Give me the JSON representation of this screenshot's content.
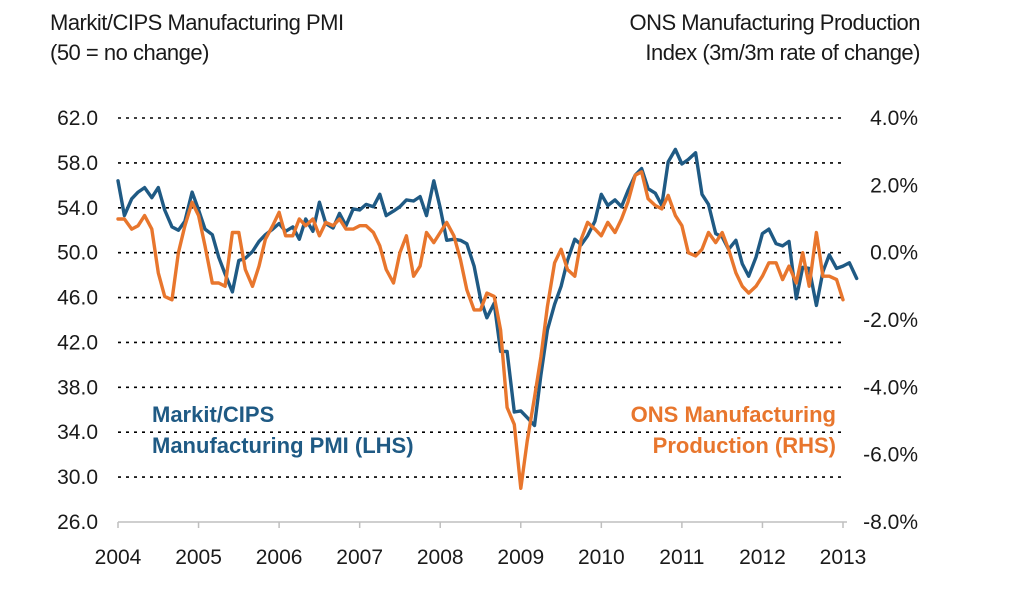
{
  "left_title": {
    "line1": "Markit/CIPS Manufacturing PMI",
    "line2": "(50 = no change)"
  },
  "right_title": {
    "line1": "ONS Manufacturing Production",
    "line2": "Index (3m/3m rate of change)"
  },
  "colors": {
    "pmi": "#1f5a84",
    "ons": "#e8762d",
    "grid": "#000000",
    "axis": "#bfbfbf"
  },
  "chart_data": {
    "type": "line",
    "x_ticks": [
      "2004",
      "2005",
      "2006",
      "2007",
      "2008",
      "2009",
      "2010",
      "2011",
      "2012",
      "2013"
    ],
    "xlim": [
      2004.0,
      2013.2
    ],
    "y_left": {
      "range": [
        26.0,
        62.0
      ],
      "ticks": [
        "62.0",
        "58.0",
        "54.0",
        "50.0",
        "46.0",
        "42.0",
        "38.0",
        "34.0",
        "30.0",
        "26.0"
      ]
    },
    "y_right": {
      "range": [
        -8.0,
        4.0
      ],
      "ticks": [
        "4.0%",
        "2.0%",
        "0.0%",
        "-2.0%",
        "-4.0%",
        "-6.0%",
        "-8.0%"
      ]
    },
    "grid": "dotted horizontal",
    "series": [
      {
        "name": "Markit/CIPS Manufacturing PMI (LHS)",
        "axis": "left",
        "label_lines": [
          "Markit/CIPS",
          "Manufacturing PMI (LHS)"
        ],
        "x": [
          2004.0,
          2004.08,
          2004.17,
          2004.25,
          2004.33,
          2004.42,
          2004.5,
          2004.58,
          2004.67,
          2004.75,
          2004.83,
          2004.92,
          2005.0,
          2005.08,
          2005.17,
          2005.25,
          2005.33,
          2005.42,
          2005.5,
          2005.58,
          2005.67,
          2005.75,
          2005.83,
          2005.92,
          2006.0,
          2006.08,
          2006.17,
          2006.25,
          2006.33,
          2006.42,
          2006.5,
          2006.58,
          2006.67,
          2006.75,
          2006.83,
          2006.92,
          2007.0,
          2007.08,
          2007.17,
          2007.25,
          2007.33,
          2007.42,
          2007.5,
          2007.58,
          2007.67,
          2007.75,
          2007.83,
          2007.92,
          2008.0,
          2008.08,
          2008.17,
          2008.25,
          2008.33,
          2008.42,
          2008.5,
          2008.58,
          2008.67,
          2008.75,
          2008.83,
          2008.92,
          2009.0,
          2009.08,
          2009.17,
          2009.25,
          2009.33,
          2009.42,
          2009.5,
          2009.58,
          2009.67,
          2009.75,
          2009.83,
          2009.92,
          2010.0,
          2010.08,
          2010.17,
          2010.25,
          2010.33,
          2010.42,
          2010.5,
          2010.58,
          2010.67,
          2010.75,
          2010.83,
          2010.92,
          2011.0,
          2011.08,
          2011.17,
          2011.25,
          2011.33,
          2011.42,
          2011.5,
          2011.58,
          2011.67,
          2011.75,
          2011.83,
          2011.92,
          2012.0,
          2012.08,
          2012.17,
          2012.25,
          2012.33,
          2012.42,
          2012.5,
          2012.58,
          2012.67,
          2012.75,
          2012.83,
          2012.92,
          2013.0,
          2013.08,
          2013.17
        ],
        "values": [
          56.4,
          53.3,
          54.8,
          55.4,
          55.8,
          54.9,
          55.8,
          53.8,
          52.3,
          52.0,
          52.8,
          55.4,
          53.8,
          52.1,
          51.6,
          49.6,
          48.1,
          46.5,
          49.3,
          49.5,
          50.1,
          51.0,
          51.6,
          52.1,
          52.6,
          51.9,
          52.3,
          51.2,
          53.0,
          51.9,
          54.5,
          52.6,
          52.2,
          53.5,
          52.4,
          53.9,
          53.8,
          54.3,
          54.1,
          55.2,
          53.3,
          53.7,
          54.1,
          54.7,
          54.6,
          55.0,
          53.3,
          56.4,
          54.0,
          51.1,
          51.2,
          51.1,
          50.8,
          48.8,
          45.9,
          44.2,
          45.5,
          41.2,
          41.2,
          35.8,
          35.9,
          35.3,
          34.6,
          39.1,
          43.1,
          45.4,
          47.0,
          49.3,
          51.2,
          50.7,
          51.5,
          52.8,
          55.2,
          54.2,
          54.7,
          54.1,
          55.5,
          56.9,
          57.5,
          55.7,
          55.3,
          54.2,
          58.1,
          59.2,
          57.9,
          58.3,
          58.9,
          55.2,
          54.3,
          51.7,
          51.4,
          50.3,
          51.1,
          49.0,
          47.9,
          49.6,
          51.7,
          52.1,
          50.8,
          50.6,
          51.0,
          45.9,
          48.7,
          48.6,
          45.3,
          48.3,
          49.8,
          48.6,
          48.8,
          49.1,
          47.7
        ],
        "values_note": ""
      },
      {
        "name": "ONS Manufacturing Production (RHS)",
        "axis": "right",
        "label_lines": [
          "ONS Manufacturing",
          "Production (RHS)"
        ],
        "x": [
          2004.0,
          2004.08,
          2004.17,
          2004.25,
          2004.33,
          2004.42,
          2004.5,
          2004.58,
          2004.67,
          2004.75,
          2004.83,
          2004.92,
          2005.0,
          2005.08,
          2005.17,
          2005.25,
          2005.33,
          2005.42,
          2005.5,
          2005.58,
          2005.67,
          2005.75,
          2005.83,
          2005.92,
          2006.0,
          2006.08,
          2006.17,
          2006.25,
          2006.33,
          2006.42,
          2006.5,
          2006.58,
          2006.67,
          2006.75,
          2006.83,
          2006.92,
          2007.0,
          2007.08,
          2007.17,
          2007.25,
          2007.33,
          2007.42,
          2007.5,
          2007.58,
          2007.67,
          2007.75,
          2007.83,
          2007.92,
          2008.0,
          2008.08,
          2008.17,
          2008.25,
          2008.33,
          2008.42,
          2008.5,
          2008.58,
          2008.67,
          2008.75,
          2008.83,
          2008.92,
          2009.0,
          2009.08,
          2009.17,
          2009.25,
          2009.33,
          2009.42,
          2009.5,
          2009.58,
          2009.67,
          2009.75,
          2009.83,
          2009.92,
          2010.0,
          2010.08,
          2010.17,
          2010.25,
          2010.33,
          2010.42,
          2010.5,
          2010.58,
          2010.67,
          2010.75,
          2010.83,
          2010.92,
          2011.0,
          2011.08,
          2011.17,
          2011.25,
          2011.33,
          2011.42,
          2011.5,
          2011.58,
          2011.67,
          2011.75,
          2011.83,
          2011.92,
          2012.0,
          2012.08,
          2012.17,
          2012.25,
          2012.33,
          2012.42,
          2012.5,
          2012.58,
          2012.67,
          2012.75,
          2012.83,
          2012.92,
          2013.0
        ],
        "values": [
          1.0,
          1.0,
          0.7,
          0.8,
          1.1,
          0.7,
          -0.6,
          -1.3,
          -1.4,
          0.0,
          0.8,
          1.5,
          1.1,
          0.2,
          -0.9,
          -0.9,
          -1.0,
          0.6,
          0.6,
          -0.5,
          -1.0,
          -0.4,
          0.4,
          0.8,
          1.2,
          0.5,
          0.5,
          1.0,
          0.8,
          1.0,
          0.5,
          0.9,
          0.8,
          1.0,
          0.7,
          0.7,
          0.8,
          0.8,
          0.6,
          0.2,
          -0.5,
          -0.9,
          0.0,
          0.5,
          -0.7,
          -0.4,
          0.6,
          0.3,
          0.6,
          0.9,
          0.5,
          -0.2,
          -1.1,
          -1.7,
          -1.7,
          -1.2,
          -1.3,
          -2.3,
          -4.6,
          -5.1,
          -7.0,
          -5.6,
          -4.3,
          -3.1,
          -1.6,
          -0.3,
          0.1,
          -0.5,
          -0.7,
          0.4,
          0.9,
          0.7,
          0.5,
          0.9,
          0.6,
          1.0,
          1.5,
          2.3,
          2.4,
          1.6,
          1.4,
          1.3,
          1.7,
          1.1,
          0.8,
          0.0,
          -0.1,
          0.1,
          0.6,
          0.3,
          0.6,
          0.1,
          -0.6,
          -1.0,
          -1.2,
          -1.0,
          -0.7,
          -0.3,
          -0.3,
          -0.8,
          -0.4,
          -0.9,
          0.0,
          -1.0,
          0.6,
          -0.7,
          -0.7,
          -0.8,
          -1.4
        ],
        "values_note": ""
      }
    ]
  }
}
